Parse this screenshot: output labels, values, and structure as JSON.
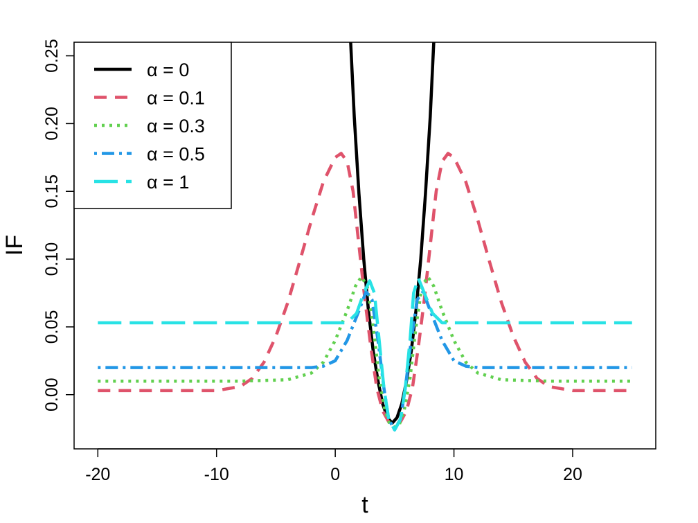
{
  "chart_data": {
    "type": "line",
    "title": "",
    "xlabel": "t",
    "ylabel": "IF",
    "xlim": [
      -22,
      27
    ],
    "ylim": [
      -0.04,
      0.26
    ],
    "x_ticks": [
      -20,
      -10,
      0,
      10,
      20
    ],
    "x_tick_labels": [
      "-20",
      "-10",
      "0",
      "10",
      "20"
    ],
    "y_ticks": [
      0.0,
      0.05,
      0.1,
      0.15,
      0.2,
      0.25
    ],
    "y_tick_labels": [
      "0.00",
      "0.05",
      "0.10",
      "0.15",
      "0.20",
      "0.25"
    ],
    "grid": false,
    "legend_position": "top-left",
    "series": [
      {
        "name": "α = 0",
        "color": "#000000",
        "dash": "solid",
        "points": [
          [
            1.3,
            0.26
          ],
          [
            1.6,
            0.205
          ],
          [
            2.0,
            0.148
          ],
          [
            2.4,
            0.1
          ],
          [
            2.8,
            0.062
          ],
          [
            3.2,
            0.032
          ],
          [
            3.6,
            0.01
          ],
          [
            4.0,
            -0.007
          ],
          [
            4.4,
            -0.017
          ],
          [
            4.8,
            -0.021
          ],
          [
            5.2,
            -0.017
          ],
          [
            5.6,
            -0.007
          ],
          [
            6.0,
            0.01
          ],
          [
            6.4,
            0.032
          ],
          [
            6.8,
            0.062
          ],
          [
            7.2,
            0.1
          ],
          [
            7.6,
            0.148
          ],
          [
            8.0,
            0.205
          ],
          [
            8.3,
            0.26
          ]
        ]
      },
      {
        "name": "α = 0.1",
        "color": "#DF536B",
        "dash": "dashed",
        "points": [
          [
            -20,
            0.003
          ],
          [
            -10,
            0.003
          ],
          [
            -8,
            0.006
          ],
          [
            -7,
            0.012
          ],
          [
            -6,
            0.024
          ],
          [
            -5,
            0.043
          ],
          [
            -4,
            0.068
          ],
          [
            -3,
            0.098
          ],
          [
            -2,
            0.129
          ],
          [
            -1,
            0.157
          ],
          [
            0,
            0.175
          ],
          [
            0.5,
            0.178
          ],
          [
            1,
            0.172
          ],
          [
            1.5,
            0.15
          ],
          [
            2,
            0.11
          ],
          [
            2.5,
            0.07
          ],
          [
            3,
            0.035
          ],
          [
            3.5,
            0.005
          ],
          [
            4,
            -0.012
          ],
          [
            4.5,
            -0.02
          ],
          [
            5,
            -0.022
          ],
          [
            5.5,
            -0.02
          ],
          [
            6,
            -0.012
          ],
          [
            6.5,
            0.005
          ],
          [
            7,
            0.035
          ],
          [
            7.5,
            0.07
          ],
          [
            8,
            0.11
          ],
          [
            8.5,
            0.15
          ],
          [
            9,
            0.172
          ],
          [
            9.5,
            0.178
          ],
          [
            10,
            0.175
          ],
          [
            11,
            0.157
          ],
          [
            12,
            0.129
          ],
          [
            13,
            0.098
          ],
          [
            14,
            0.068
          ],
          [
            15,
            0.043
          ],
          [
            16,
            0.024
          ],
          [
            17,
            0.012
          ],
          [
            18,
            0.006
          ],
          [
            20,
            0.003
          ],
          [
            25,
            0.003
          ]
        ]
      },
      {
        "name": "α = 0.3",
        "color": "#61D04F",
        "dash": "dotted",
        "points": [
          [
            -20,
            0.01
          ],
          [
            -8,
            0.01
          ],
          [
            -4,
            0.011
          ],
          [
            -2,
            0.016
          ],
          [
            -1,
            0.024
          ],
          [
            0,
            0.04
          ],
          [
            1,
            0.062
          ],
          [
            1.7,
            0.08
          ],
          [
            2.2,
            0.087
          ],
          [
            2.7,
            0.08
          ],
          [
            3.2,
            0.05
          ],
          [
            3.7,
            0.012
          ],
          [
            4.2,
            -0.012
          ],
          [
            4.6,
            -0.022
          ],
          [
            5,
            -0.024
          ],
          [
            5.4,
            -0.022
          ],
          [
            5.8,
            -0.012
          ],
          [
            6.3,
            0.012
          ],
          [
            6.8,
            0.05
          ],
          [
            7.3,
            0.08
          ],
          [
            7.8,
            0.087
          ],
          [
            8.3,
            0.08
          ],
          [
            9,
            0.062
          ],
          [
            10,
            0.04
          ],
          [
            11,
            0.024
          ],
          [
            12,
            0.016
          ],
          [
            14,
            0.011
          ],
          [
            18,
            0.01
          ],
          [
            25,
            0.01
          ]
        ]
      },
      {
        "name": "α = 0.5",
        "color": "#2297E6",
        "dash": "dotdash",
        "points": [
          [
            -20,
            0.02
          ],
          [
            -2,
            0.02
          ],
          [
            -1,
            0.021
          ],
          [
            0,
            0.025
          ],
          [
            1,
            0.04
          ],
          [
            2,
            0.062
          ],
          [
            2.6,
            0.076
          ],
          [
            3.1,
            0.07
          ],
          [
            3.6,
            0.04
          ],
          [
            4.1,
            0.005
          ],
          [
            4.5,
            -0.018
          ],
          [
            5,
            -0.026
          ],
          [
            5.5,
            -0.018
          ],
          [
            5.9,
            0.005
          ],
          [
            6.4,
            0.04
          ],
          [
            6.9,
            0.07
          ],
          [
            7.4,
            0.076
          ],
          [
            8,
            0.062
          ],
          [
            9,
            0.04
          ],
          [
            10,
            0.025
          ],
          [
            11,
            0.021
          ],
          [
            12,
            0.02
          ],
          [
            25,
            0.02
          ]
        ]
      },
      {
        "name": "α = 1",
        "color": "#28E2E5",
        "dash": "longdash",
        "points": [
          [
            -20,
            0.053
          ],
          [
            1,
            0.053
          ],
          [
            1.8,
            0.06
          ],
          [
            2.4,
            0.075
          ],
          [
            2.9,
            0.084
          ],
          [
            3.3,
            0.075
          ],
          [
            3.7,
            0.04
          ],
          [
            4.1,
            0.005
          ],
          [
            4.5,
            -0.018
          ],
          [
            5,
            -0.026
          ],
          [
            5.5,
            -0.018
          ],
          [
            5.9,
            0.005
          ],
          [
            6.3,
            0.04
          ],
          [
            6.6,
            0.075
          ],
          [
            7,
            0.086
          ],
          [
            7.5,
            0.075
          ],
          [
            8.2,
            0.06
          ],
          [
            9,
            0.053
          ],
          [
            25,
            0.053
          ]
        ]
      }
    ]
  }
}
